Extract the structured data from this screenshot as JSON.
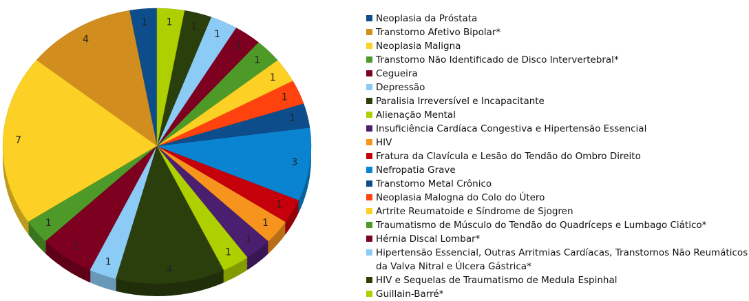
{
  "chart_data": {
    "type": "pie",
    "categories": [
      "Neoplasia da Próstata",
      "Transtorno Afetivo Bipolar*",
      "Neoplasia Maligna",
      "Transtorno Não Identificado de Disco Intervertebral*",
      "Cegueira",
      "Depressão",
      "Paralisia Irreversível e Incapacitante",
      "Alienação Mental",
      "Insuficiência Cardíaca Congestiva e Hipertensão Essencial",
      "HIV",
      "Fratura da Clavícula e Lesão do Tendão do Ombro Direito",
      "Nefropatia Grave",
      "Transtorno Metal Crônico",
      "Neoplasia Malogna do Colo do Útero",
      "Artrite Reumatoide e Síndrome de Sjogren",
      "Traumatismo de Músculo do Tendão do Quadríceps e Lumbago Ciático*",
      "Hérnia Discal Lombar*",
      "Hipertensão Essencial, Outras Arritmias Cardíacas, Transtornos Não Reumáticos da Valva Nitral e Úlcera Gástrica*",
      "HIV e Sequelas de Traumatismo de Medula Espinhal",
      "Guillain-Barré*"
    ],
    "values": [
      1,
      4,
      7,
      1,
      2,
      1,
      4,
      1,
      1,
      1,
      1,
      3,
      1,
      1,
      1,
      1,
      1,
      1,
      1,
      1
    ],
    "colors": [
      "#0d4d8c",
      "#d18e1e",
      "#fcd025",
      "#4e9a28",
      "#7e0021",
      "#8ccbf5",
      "#2b3f0d",
      "#aecf00",
      "#4b1f6f",
      "#f7941d",
      "#c5000b",
      "#0a84d0",
      "#0d4d8c",
      "#ff420e",
      "#fcd025",
      "#4e9a28",
      "#7e0021",
      "#8ccbf5",
      "#2b3f0d",
      "#aecf00"
    ],
    "legend": "right"
  }
}
